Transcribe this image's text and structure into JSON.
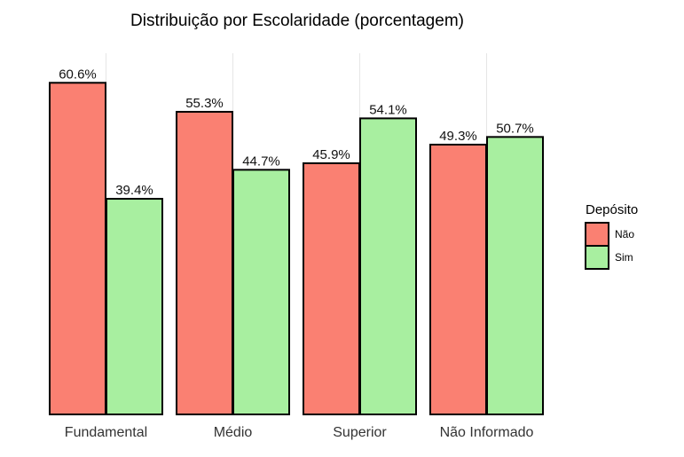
{
  "chart_data": {
    "type": "bar",
    "title": "Distribuição por Escolaridade (porcentagem)",
    "xlabel": "",
    "ylabel": "",
    "categories": [
      "Fundamental",
      "Médio",
      "Superior",
      "Não Informado"
    ],
    "series": [
      {
        "name": "Não",
        "values": [
          60.6,
          55.3,
          45.9,
          49.3
        ],
        "labels": [
          "60.6%",
          "55.3%",
          "45.9%",
          "49.3%"
        ],
        "color": "#FA8072"
      },
      {
        "name": "Sim",
        "values": [
          39.4,
          44.7,
          54.1,
          50.7
        ],
        "labels": [
          "39.4%",
          "44.7%",
          "54.1%",
          "50.7%"
        ],
        "color": "#A8EFA0"
      }
    ],
    "ylim": [
      0,
      66
    ],
    "legend": {
      "title": "Depósito",
      "position": "right"
    },
    "grid": true
  }
}
